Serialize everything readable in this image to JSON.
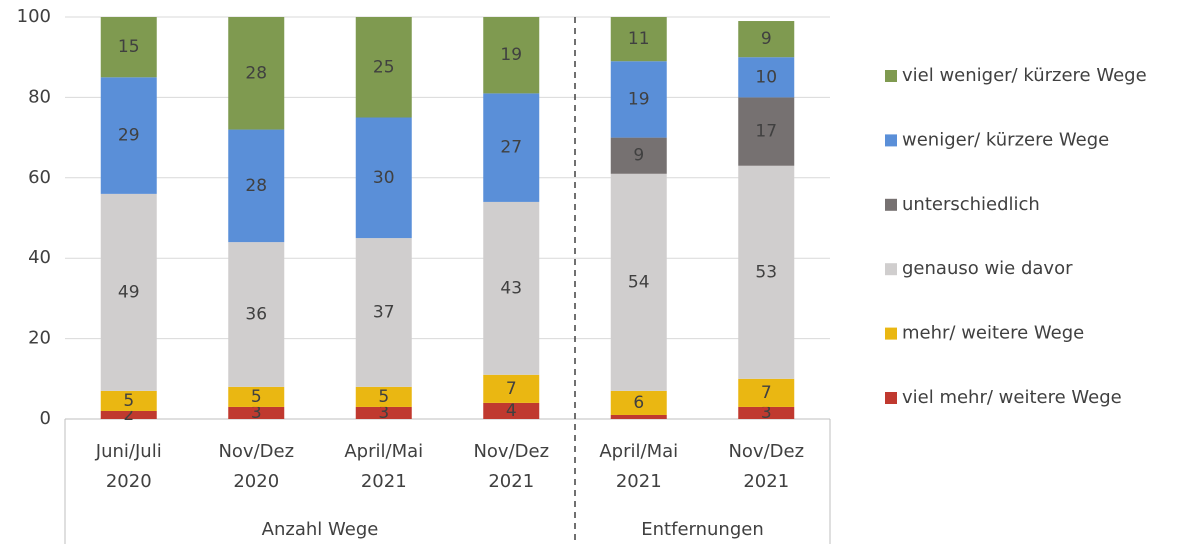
{
  "chart_data": {
    "type": "stacked_bar",
    "groups": [
      {
        "name": "Anzahl Wege",
        "categories": [
          [
            "Juni/Juli",
            "2020"
          ],
          [
            "Nov/Dez",
            "2020"
          ],
          [
            "April/Mai",
            "2021"
          ],
          [
            "Nov/Dez",
            "2021"
          ]
        ]
      },
      {
        "name": "Entfernungen",
        "categories": [
          [
            "April/Mai",
            "2021"
          ],
          [
            "Nov/Dez",
            "2021"
          ]
        ]
      }
    ],
    "series": [
      {
        "name": "viel mehr/ weitere Wege",
        "color": "#c0392f",
        "values": [
          2,
          3,
          3,
          4,
          1,
          3
        ],
        "value_labels": [
          "2",
          "3",
          "3",
          "4",
          null,
          "3"
        ]
      },
      {
        "name": "mehr/ weitere Wege",
        "color": "#eab712",
        "values": [
          5,
          5,
          5,
          7,
          6,
          7
        ]
      },
      {
        "name": "genauso wie davor",
        "color": "#d0cece",
        "values": [
          49,
          36,
          37,
          43,
          54,
          53
        ]
      },
      {
        "name": "unterschiedlich",
        "color": "#767171",
        "values": [
          null,
          null,
          null,
          null,
          9,
          17
        ]
      },
      {
        "name": "weniger/ kürzere Wege",
        "color": "#5a8fd8",
        "values": [
          29,
          28,
          30,
          27,
          19,
          10
        ]
      },
      {
        "name": "viel weniger/ kürzere Wege",
        "color": "#7f9a50",
        "values": [
          15,
          28,
          25,
          19,
          11,
          9
        ]
      }
    ],
    "ylim": [
      0,
      100
    ],
    "yticks": [
      0,
      20,
      40,
      60,
      80,
      100
    ],
    "grid": true,
    "legend": "right"
  }
}
